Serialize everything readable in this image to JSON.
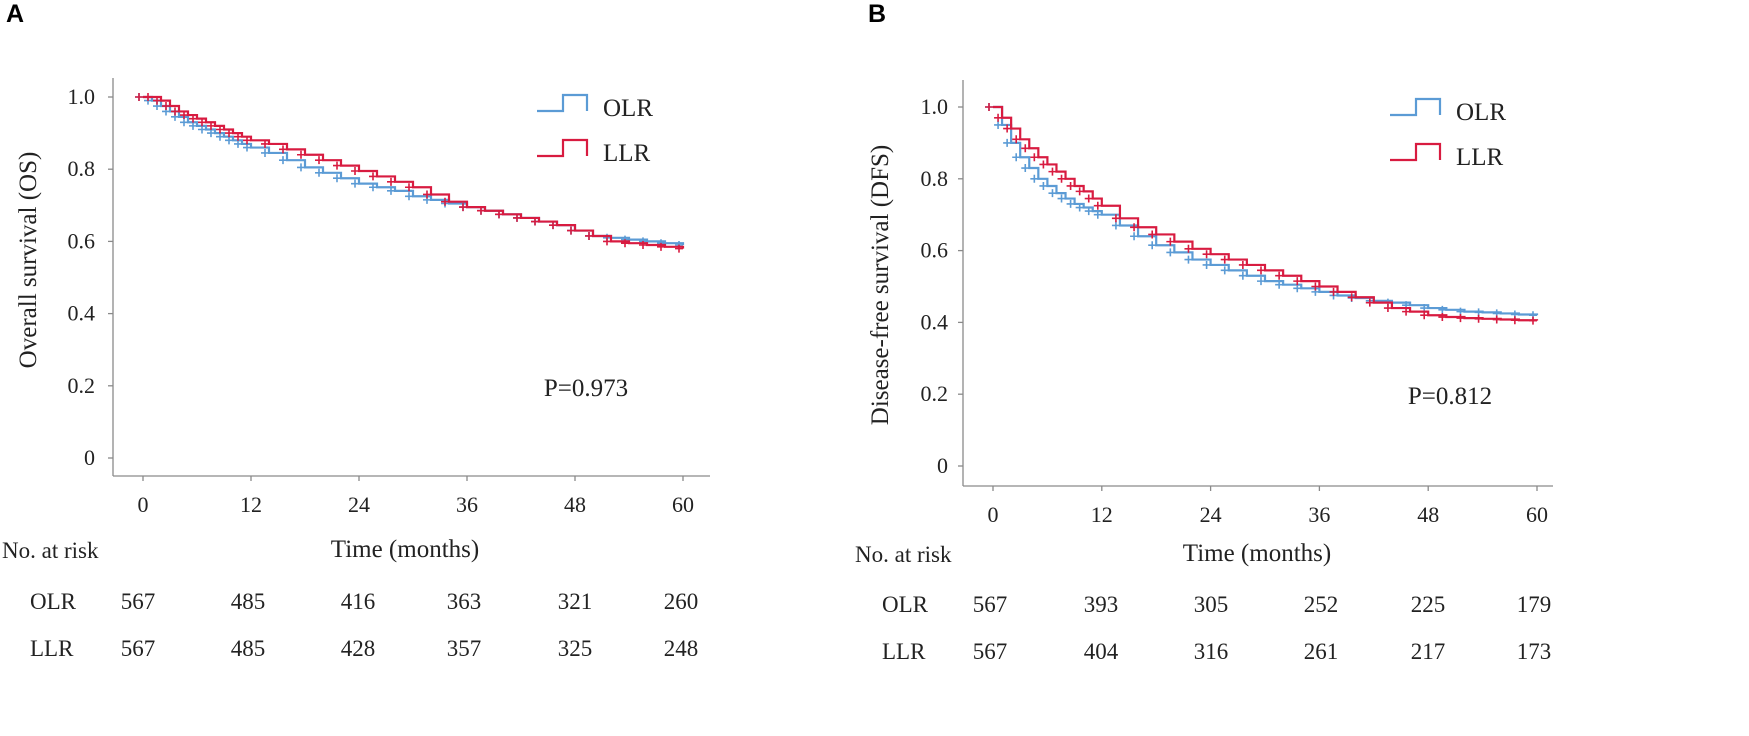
{
  "chart_data": [
    {
      "type": "line",
      "panel_label": "A",
      "xlabel": "Time (months)",
      "ylabel": "Overall survival (OS)",
      "xticks": [
        0,
        12,
        24,
        36,
        48,
        60
      ],
      "ytick_labels": [
        "0",
        "0.2",
        "0.4",
        "0.6",
        "0.8",
        "1.0"
      ],
      "xlim": [
        -3,
        63
      ],
      "ylim": [
        -0.05,
        1.05
      ],
      "pvalue": "P=0.973",
      "legend": [
        "OLR",
        "LLR"
      ],
      "series": [
        {
          "name": "OLR",
          "color": "#5b9bd5",
          "x": [
            0,
            1,
            2,
            3,
            4,
            5,
            6,
            7,
            8,
            9,
            10,
            11,
            12,
            14,
            16,
            18,
            20,
            22,
            24,
            26,
            28,
            30,
            32,
            34,
            36,
            38,
            40,
            42,
            44,
            46,
            48,
            50,
            52,
            54,
            56,
            58,
            60
          ],
          "y": [
            1.0,
            0.99,
            0.975,
            0.96,
            0.945,
            0.93,
            0.92,
            0.91,
            0.9,
            0.89,
            0.88,
            0.87,
            0.86,
            0.845,
            0.825,
            0.805,
            0.79,
            0.775,
            0.76,
            0.75,
            0.74,
            0.725,
            0.715,
            0.705,
            0.695,
            0.685,
            0.675,
            0.665,
            0.655,
            0.645,
            0.63,
            0.615,
            0.61,
            0.605,
            0.6,
            0.595,
            0.59
          ]
        },
        {
          "name": "LLR",
          "color": "#d81b40",
          "x": [
            0,
            1,
            2,
            3,
            4,
            5,
            6,
            7,
            8,
            9,
            10,
            11,
            12,
            14,
            16,
            18,
            20,
            22,
            24,
            26,
            28,
            30,
            32,
            34,
            36,
            38,
            40,
            42,
            44,
            46,
            48,
            50,
            52,
            54,
            56,
            58,
            60
          ],
          "y": [
            1.0,
            1.0,
            0.99,
            0.975,
            0.96,
            0.95,
            0.94,
            0.93,
            0.92,
            0.91,
            0.9,
            0.89,
            0.88,
            0.87,
            0.855,
            0.84,
            0.825,
            0.81,
            0.795,
            0.78,
            0.765,
            0.75,
            0.73,
            0.71,
            0.695,
            0.685,
            0.675,
            0.665,
            0.655,
            0.645,
            0.63,
            0.615,
            0.6,
            0.595,
            0.59,
            0.585,
            0.58
          ]
        }
      ],
      "risk_table": {
        "header": "No. at risk",
        "rows": [
          {
            "name": "OLR",
            "values": [
              "567",
              "485",
              "416",
              "363",
              "321",
              "260"
            ]
          },
          {
            "name": "LLR",
            "values": [
              "567",
              "485",
              "428",
              "357",
              "325",
              "248"
            ]
          }
        ]
      }
    },
    {
      "type": "line",
      "panel_label": "B",
      "xlabel": "Time (months)",
      "ylabel": "Disease-free survival (DFS)",
      "xticks": [
        0,
        12,
        24,
        36,
        48,
        60
      ],
      "ytick_labels": [
        "0",
        "0.2",
        "0.4",
        "0.6",
        "0.8",
        "1.0"
      ],
      "xlim": [
        -3,
        63
      ],
      "ylim": [
        -0.05,
        1.05
      ],
      "pvalue": "P=0.812",
      "legend": [
        "OLR",
        "LLR"
      ],
      "series": [
        {
          "name": "OLR",
          "color": "#5b9bd5",
          "x": [
            0,
            1,
            2,
            3,
            4,
            5,
            6,
            7,
            8,
            9,
            10,
            11,
            12,
            14,
            16,
            18,
            20,
            22,
            24,
            26,
            28,
            30,
            32,
            34,
            36,
            38,
            40,
            42,
            44,
            46,
            48,
            50,
            52,
            54,
            56,
            58,
            60
          ],
          "y": [
            1.0,
            0.95,
            0.9,
            0.86,
            0.83,
            0.8,
            0.78,
            0.76,
            0.745,
            0.73,
            0.72,
            0.71,
            0.7,
            0.67,
            0.64,
            0.615,
            0.595,
            0.575,
            0.56,
            0.545,
            0.53,
            0.515,
            0.505,
            0.495,
            0.485,
            0.475,
            0.468,
            0.46,
            0.455,
            0.448,
            0.44,
            0.435,
            0.43,
            0.428,
            0.425,
            0.422,
            0.42
          ]
        },
        {
          "name": "LLR",
          "color": "#d81b40",
          "x": [
            0,
            1,
            2,
            3,
            4,
            5,
            6,
            7,
            8,
            9,
            10,
            11,
            12,
            14,
            16,
            18,
            20,
            22,
            24,
            26,
            28,
            30,
            32,
            34,
            36,
            38,
            40,
            42,
            44,
            46,
            48,
            50,
            52,
            54,
            56,
            58,
            60
          ],
          "y": [
            1.0,
            0.97,
            0.94,
            0.91,
            0.885,
            0.86,
            0.84,
            0.82,
            0.8,
            0.78,
            0.765,
            0.745,
            0.725,
            0.69,
            0.665,
            0.645,
            0.625,
            0.605,
            0.59,
            0.575,
            0.56,
            0.545,
            0.53,
            0.515,
            0.5,
            0.485,
            0.47,
            0.455,
            0.44,
            0.43,
            0.42,
            0.415,
            0.412,
            0.41,
            0.408,
            0.406,
            0.405
          ]
        }
      ],
      "risk_table": {
        "header": "No. at risk",
        "rows": [
          {
            "name": "OLR",
            "values": [
              "567",
              "393",
              "305",
              "252",
              "225",
              "179"
            ]
          },
          {
            "name": "LLR",
            "values": [
              "567",
              "404",
              "316",
              "261",
              "217",
              "173"
            ]
          }
        ]
      }
    }
  ]
}
